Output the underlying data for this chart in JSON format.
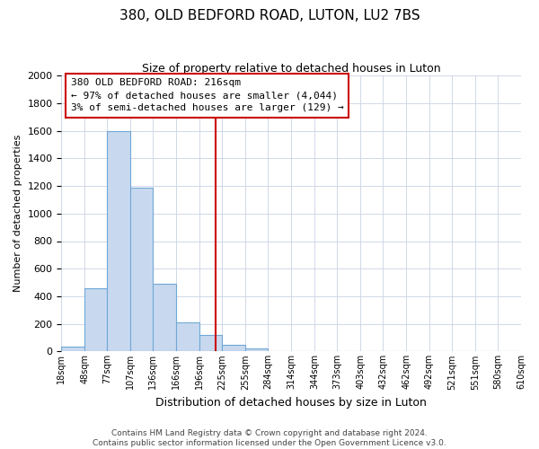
{
  "title": "380, OLD BEDFORD ROAD, LUTON, LU2 7BS",
  "subtitle": "Size of property relative to detached houses in Luton",
  "xlabel": "Distribution of detached houses by size in Luton",
  "ylabel": "Number of detached properties",
  "bin_edges": [
    18,
    48,
    77,
    107,
    136,
    166,
    196,
    225,
    255,
    284,
    314,
    344,
    373,
    403,
    432,
    462,
    492,
    521,
    551,
    580,
    610
  ],
  "counts": [
    35,
    460,
    1600,
    1190,
    490,
    210,
    120,
    45,
    20,
    0,
    0,
    0,
    0,
    0,
    0,
    0,
    0,
    0,
    0,
    0
  ],
  "bar_facecolor": "#c8d9ef",
  "bar_edgecolor": "#6fa8d6",
  "vline_x": 216,
  "vline_color": "#cc0000",
  "annotation_title": "380 OLD BEDFORD ROAD: 216sqm",
  "annotation_line1": "← 97% of detached houses are smaller (4,044)",
  "annotation_line2": "3% of semi-detached houses are larger (129) →",
  "annotation_box_edgecolor": "#cc0000",
  "annotation_box_facecolor": "#ffffff",
  "ylim": [
    0,
    2000
  ],
  "yticks": [
    0,
    200,
    400,
    600,
    800,
    1000,
    1200,
    1400,
    1600,
    1800,
    2000
  ],
  "tick_labels": [
    "18sqm",
    "48sqm",
    "77sqm",
    "107sqm",
    "136sqm",
    "166sqm",
    "196sqm",
    "225sqm",
    "255sqm",
    "284sqm",
    "314sqm",
    "344sqm",
    "373sqm",
    "403sqm",
    "432sqm",
    "462sqm",
    "492sqm",
    "521sqm",
    "551sqm",
    "580sqm",
    "610sqm"
  ],
  "footer1": "Contains HM Land Registry data © Crown copyright and database right 2024.",
  "footer2": "Contains public sector information licensed under the Open Government Licence v3.0.",
  "background_color": "#ffffff",
  "grid_color": "#d0d8e8"
}
